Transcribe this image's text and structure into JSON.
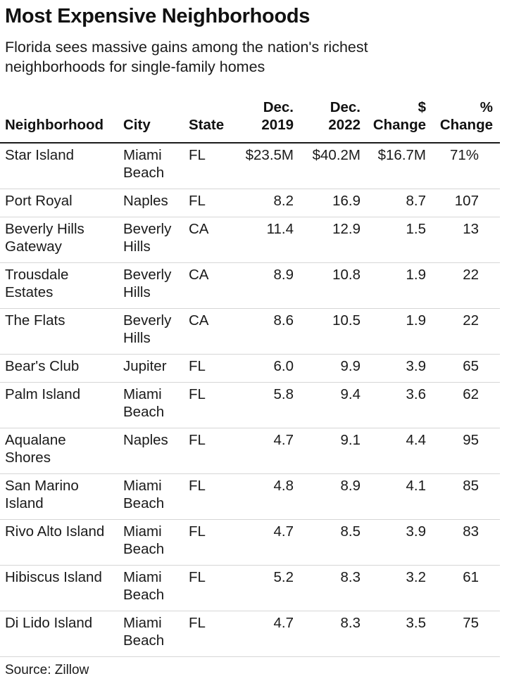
{
  "title": "Most Expensive Neighborhoods",
  "subtitle": "Florida sees massive gains among the nation's richest neighborhoods for single-family homes",
  "columns": {
    "neighborhood": "Neighborhood",
    "city": "City",
    "state": "State",
    "dec2019_top": "Dec.",
    "dec2019_bottom": "2019",
    "dec2022_top": "Dec.",
    "dec2022_bottom": "2022",
    "dollar_change_top": "$",
    "dollar_change_bottom": "Change",
    "pct_change_top": "%",
    "pct_change_bottom": "Change"
  },
  "rows": [
    {
      "neighborhood": [
        "Star Island"
      ],
      "city": [
        "Miami",
        "Beach"
      ],
      "state": "FL",
      "dec2019": "$23.5M",
      "dec2022": "$40.2M",
      "change": "$16.7M",
      "pct": "71%"
    },
    {
      "neighborhood": [
        "Port Royal"
      ],
      "city": [
        "Naples"
      ],
      "state": "FL",
      "dec2019": "8.2",
      "dec2022": "16.9",
      "change": "8.7",
      "pct": "107"
    },
    {
      "neighborhood": [
        "Beverly Hills",
        "Gateway"
      ],
      "city": [
        "Beverly",
        "Hills"
      ],
      "state": "CA",
      "dec2019": "11.4",
      "dec2022": "12.9",
      "change": "1.5",
      "pct": "13"
    },
    {
      "neighborhood": [
        "Trousdale",
        "Estates"
      ],
      "city": [
        "Beverly",
        "Hills"
      ],
      "state": "CA",
      "dec2019": "8.9",
      "dec2022": "10.8",
      "change": "1.9",
      "pct": "22"
    },
    {
      "neighborhood": [
        "The Flats"
      ],
      "city": [
        "Beverly",
        "Hills"
      ],
      "state": "CA",
      "dec2019": "8.6",
      "dec2022": "10.5",
      "change": "1.9",
      "pct": "22"
    },
    {
      "neighborhood": [
        "Bear's Club"
      ],
      "city": [
        "Jupiter"
      ],
      "state": "FL",
      "dec2019": "6.0",
      "dec2022": "9.9",
      "change": "3.9",
      "pct": "65"
    },
    {
      "neighborhood": [
        "Palm Island"
      ],
      "city": [
        "Miami",
        "Beach"
      ],
      "state": "FL",
      "dec2019": "5.8",
      "dec2022": "9.4",
      "change": "3.6",
      "pct": "62"
    },
    {
      "neighborhood": [
        "Aqualane",
        "Shores"
      ],
      "city": [
        "Naples"
      ],
      "state": "FL",
      "dec2019": "4.7",
      "dec2022": "9.1",
      "change": "4.4",
      "pct": "95"
    },
    {
      "neighborhood": [
        "San Marino",
        "Island"
      ],
      "city": [
        "Miami",
        "Beach"
      ],
      "state": "FL",
      "dec2019": "4.8",
      "dec2022": "8.9",
      "change": "4.1",
      "pct": "85"
    },
    {
      "neighborhood": [
        "Rivo Alto Island"
      ],
      "city": [
        "Miami",
        "Beach"
      ],
      "state": "FL",
      "dec2019": "4.7",
      "dec2022": "8.5",
      "change": "3.9",
      "pct": "83"
    },
    {
      "neighborhood": [
        "Hibiscus Island"
      ],
      "city": [
        "Miami",
        "Beach"
      ],
      "state": "FL",
      "dec2019": "5.2",
      "dec2022": "8.3",
      "change": "3.2",
      "pct": "61"
    },
    {
      "neighborhood": [
        "Di Lido Island"
      ],
      "city": [
        "Miami",
        "Beach"
      ],
      "state": "FL",
      "dec2019": "4.7",
      "dec2022": "8.3",
      "change": "3.5",
      "pct": "75"
    }
  ],
  "source": "Source: Zillow"
}
